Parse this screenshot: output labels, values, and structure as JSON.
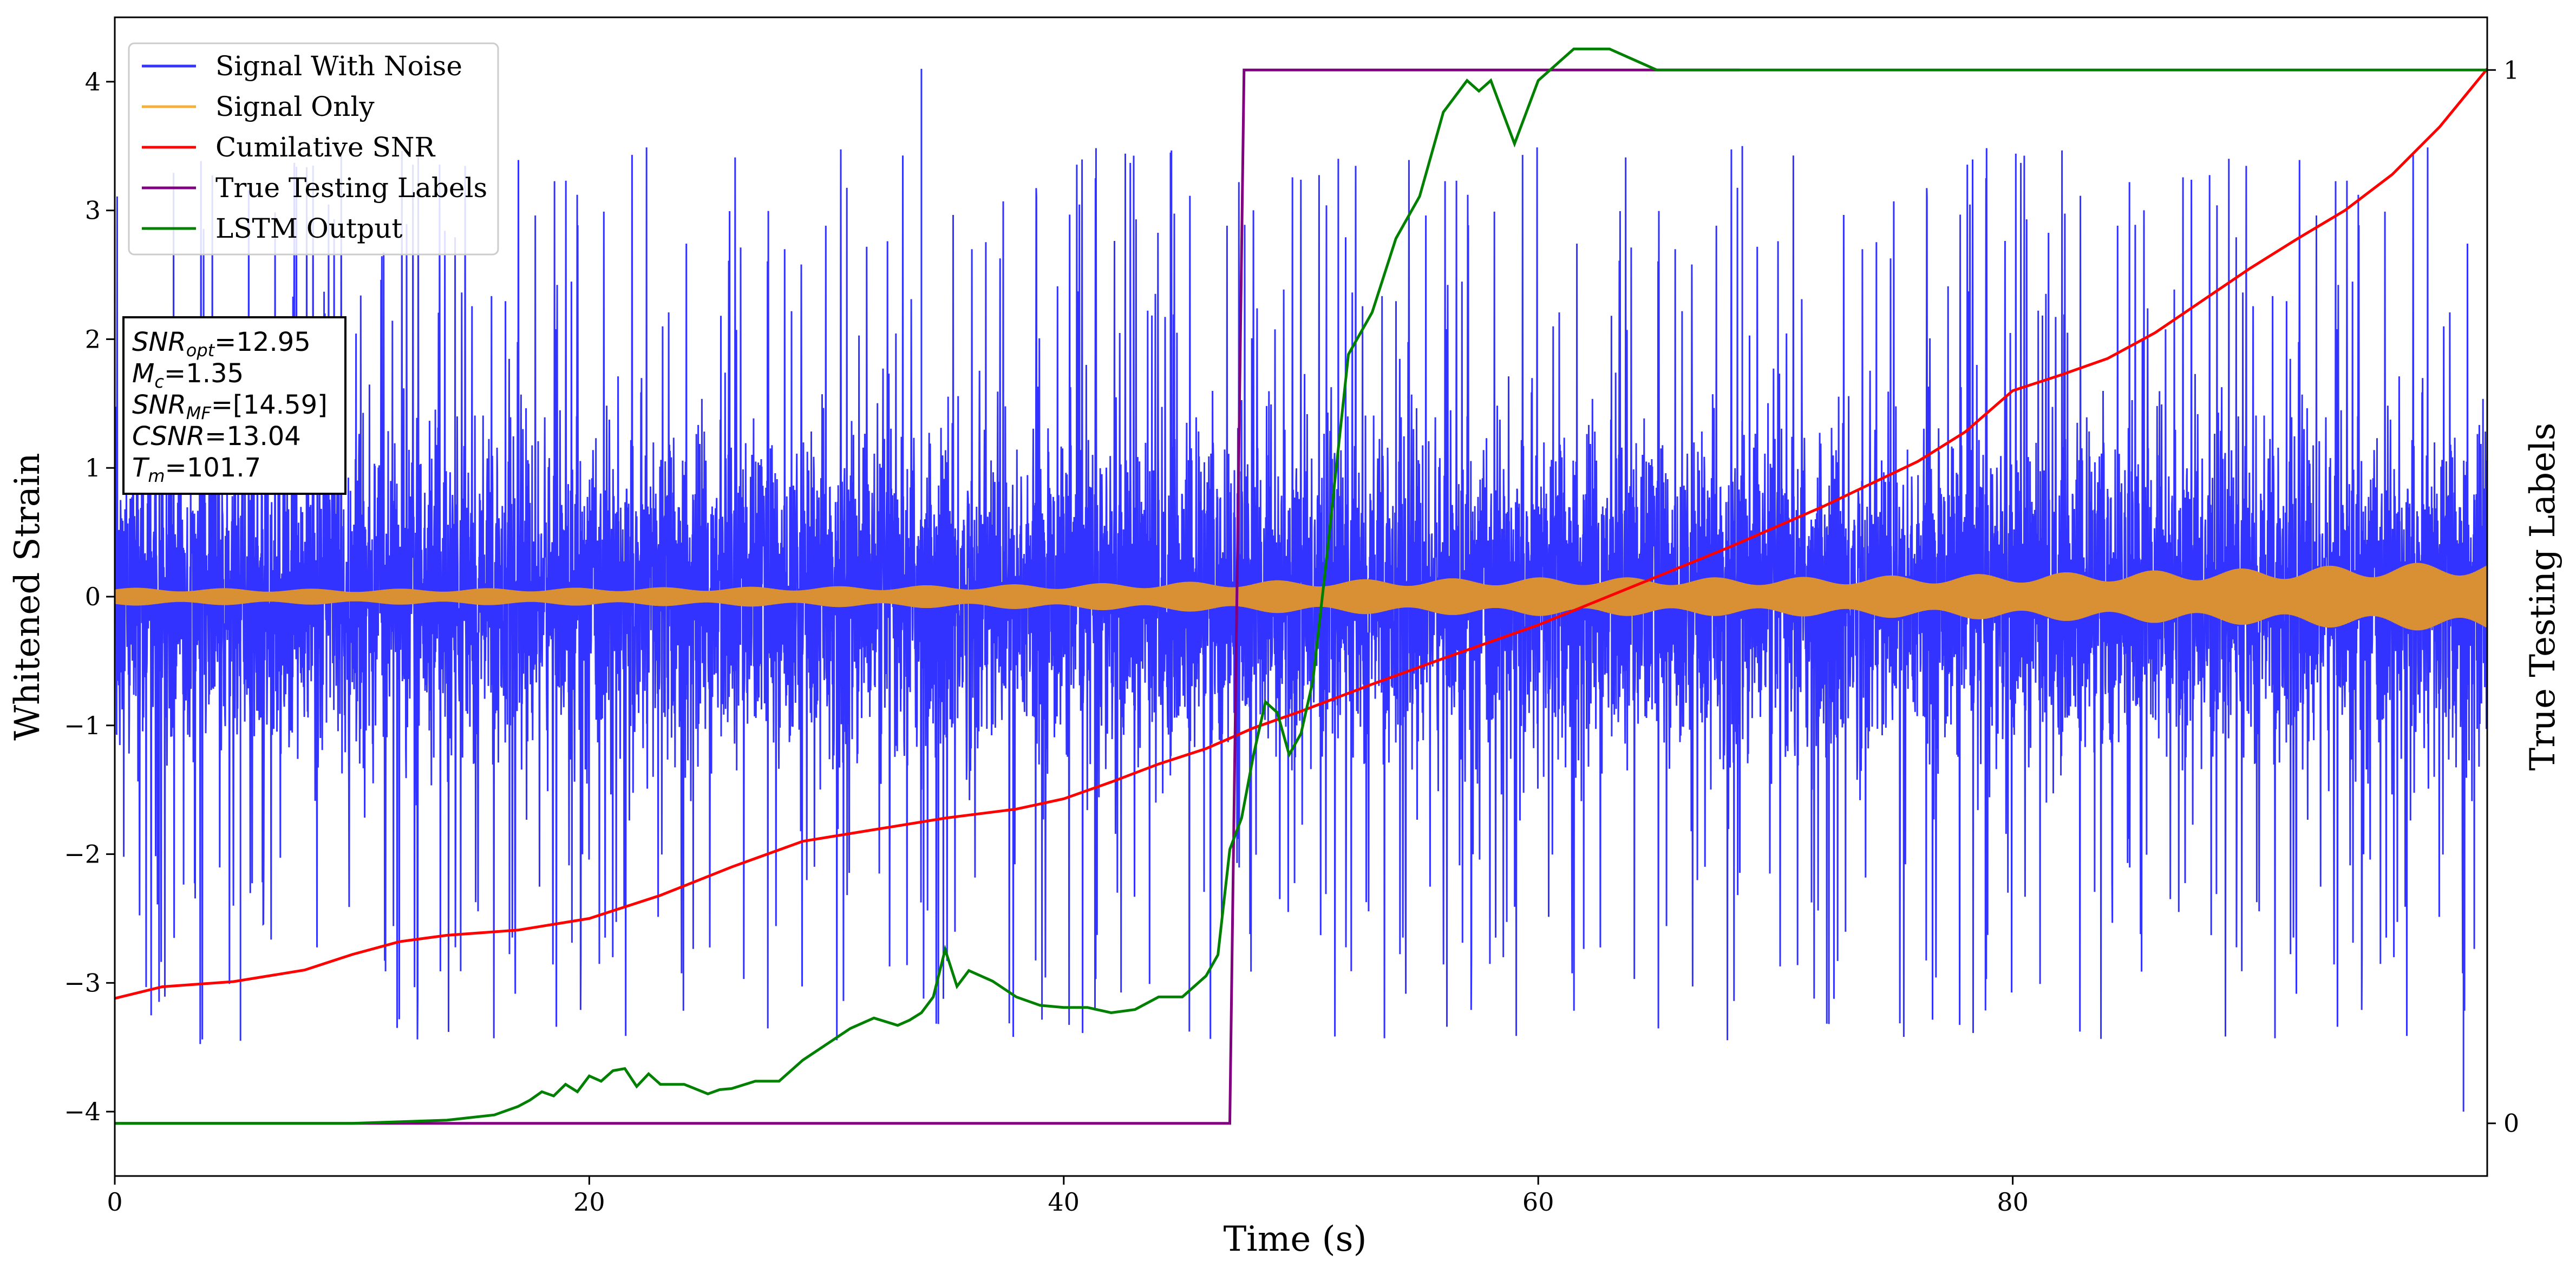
{
  "chart_data": {
    "type": "line",
    "xlabel": "Time (s)",
    "ylabel": "Whitened Strain",
    "y2label": "True Testing Labels",
    "xlim": [
      0,
      100
    ],
    "ylim": [
      -4.5,
      4.5
    ],
    "y2lim": [
      -0.05,
      1.05
    ],
    "xticks": [
      "0",
      "20",
      "40",
      "60",
      "80"
    ],
    "xtick_values": [
      0,
      20,
      40,
      60,
      80
    ],
    "yticks": [
      "−4",
      "−3",
      "−2",
      "−1",
      "0",
      "1",
      "2",
      "3",
      "4"
    ],
    "ytick_values": [
      -4,
      -3,
      -2,
      -1,
      0,
      1,
      2,
      3,
      4
    ],
    "y2ticks": [
      "0",
      "1"
    ],
    "y2tick_values": [
      0,
      1
    ],
    "legend": {
      "placement": "upper-left",
      "entries": [
        {
          "label": "Signal With Noise",
          "color": "#3333ff"
        },
        {
          "label": "Signal Only",
          "color": "#f5b03c"
        },
        {
          "label": "Cumilative SNR",
          "color": "#ff0000"
        },
        {
          "label": "True Testing Labels",
          "color": "#800080"
        },
        {
          "label": "LSTM Output",
          "color": "#008000"
        }
      ]
    },
    "annotation": {
      "lines": [
        {
          "sym": "SNR",
          "sub": "opt",
          "value": "=12.95"
        },
        {
          "sym": "M",
          "sub": "c",
          "value": "=1.35"
        },
        {
          "sym": "SNR",
          "sub": "MF",
          "value": "=[14.59]"
        },
        {
          "sym": "CSNR",
          "sub": "",
          "value": "=13.04"
        },
        {
          "sym": "T",
          "sub": "m",
          "value": "=101.7"
        }
      ]
    },
    "series": [
      {
        "name": "Signal With Noise",
        "color": "#3333ff",
        "axis": "left",
        "description": "noisy whitened strain, approx ±1.2 band with spikes to ±3.5, max 4.1 near t=34"
      },
      {
        "name": "Signal Only",
        "color": "#f5b03c",
        "axis": "left",
        "envelope": {
          "x": [
            0,
            10,
            20,
            30,
            40,
            50,
            60,
            70,
            80,
            90,
            100
          ],
          "amp": [
            0.07,
            0.06,
            0.07,
            0.08,
            0.1,
            0.13,
            0.15,
            0.15,
            0.18,
            0.22,
            0.28
          ]
        }
      },
      {
        "name": "Cumilative SNR",
        "color": "#ff0000",
        "axis": "left",
        "x": [
          0,
          2,
          5,
          8,
          10,
          12,
          14,
          17,
          20,
          23,
          26,
          29,
          32,
          35,
          38,
          40,
          42,
          44,
          46,
          48,
          50,
          53,
          56,
          60,
          64,
          68,
          72,
          76,
          78,
          80,
          82,
          84,
          86,
          88,
          90,
          92,
          94,
          96,
          98,
          100
        ],
        "y": [
          -3.12,
          -3.03,
          -2.99,
          -2.9,
          -2.78,
          -2.68,
          -2.63,
          -2.59,
          -2.5,
          -2.32,
          -2.1,
          -1.9,
          -1.81,
          -1.72,
          -1.65,
          -1.57,
          -1.44,
          -1.3,
          -1.18,
          -1.02,
          -0.89,
          -0.68,
          -0.48,
          -0.22,
          0.08,
          0.38,
          0.7,
          1.05,
          1.28,
          1.6,
          1.72,
          1.85,
          2.05,
          2.3,
          2.55,
          2.78,
          3.0,
          3.28,
          3.65,
          4.1
        ]
      },
      {
        "name": "True Testing Labels",
        "color": "#800080",
        "axis": "right",
        "x": [
          0,
          47.0,
          47.6,
          68.5
        ],
        "y": [
          0,
          0,
          1,
          1
        ]
      },
      {
        "name": "LSTM Output",
        "color": "#008000",
        "axis": "right",
        "x": [
          0,
          10,
          14,
          16,
          17,
          17.5,
          18,
          18.5,
          19,
          19.5,
          20,
          20.5,
          21,
          21.5,
          22,
          22.5,
          23,
          24,
          25,
          25.5,
          26,
          27,
          28,
          29,
          30,
          31,
          32,
          33,
          33.5,
          34,
          34.5,
          35,
          35.5,
          36,
          37,
          38,
          39,
          40,
          41,
          42,
          43,
          44,
          45,
          46,
          46.5,
          47,
          47.5,
          48,
          48.5,
          49,
          49.5,
          50,
          50.5,
          51,
          52,
          53,
          54,
          55,
          55.5,
          56,
          57,
          57.5,
          58,
          58.5,
          59,
          60,
          60.5,
          61,
          61.5,
          62,
          63,
          64,
          65,
          66,
          68,
          70,
          100
        ],
        "y": [
          0,
          0,
          0.003,
          0.008,
          0.016,
          0.022,
          0.03,
          0.026,
          0.037,
          0.03,
          0.045,
          0.04,
          0.05,
          0.052,
          0.035,
          0.047,
          0.037,
          0.037,
          0.028,
          0.032,
          0.033,
          0.04,
          0.04,
          0.06,
          0.075,
          0.09,
          0.1,
          0.093,
          0.098,
          0.105,
          0.12,
          0.165,
          0.13,
          0.145,
          0.135,
          0.12,
          0.112,
          0.11,
          0.11,
          0.105,
          0.108,
          0.12,
          0.12,
          0.14,
          0.16,
          0.26,
          0.29,
          0.35,
          0.4,
          0.39,
          0.35,
          0.37,
          0.42,
          0.52,
          0.73,
          0.77,
          0.84,
          0.88,
          0.92,
          0.96,
          0.99,
          0.98,
          0.99,
          0.96,
          0.93,
          0.99,
          1.0,
          1.01,
          1.02,
          1.02,
          1.02,
          1.01,
          1.0,
          1.0,
          1.0,
          1.0,
          1.0
        ]
      }
    ]
  }
}
